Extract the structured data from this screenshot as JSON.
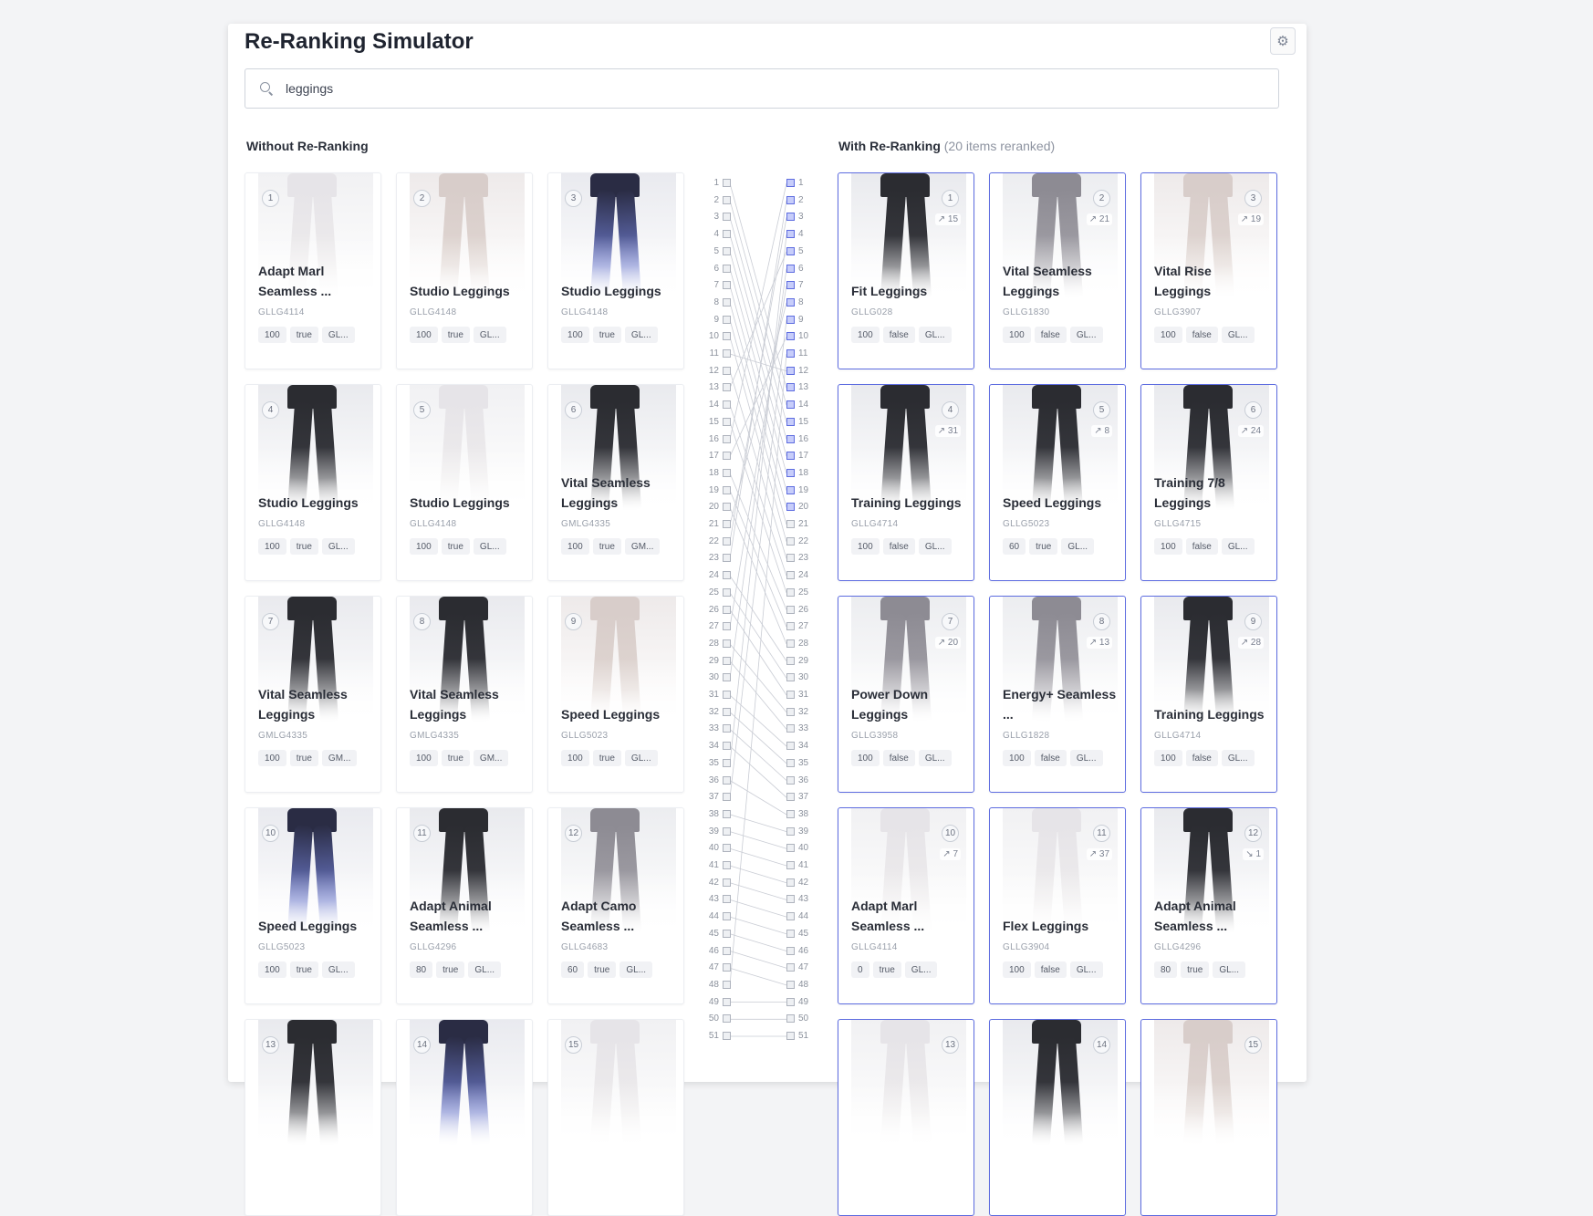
{
  "app": {
    "title": "Re-Ranking Simulator"
  },
  "search": {
    "value": "leggings",
    "placeholder": ""
  },
  "sections": {
    "left_title": "Without Re-Ranking",
    "right_title": "With Re-Ranking",
    "right_subtitle": "(20 items reranked)"
  },
  "colors": {
    "accent": "#5d6ce0",
    "dark": "#26282e",
    "light": "#e9e8ea"
  },
  "left_cards": [
    {
      "rank": "1",
      "name": "Adapt Marl Seamless ...",
      "sku": "GLLG4114",
      "chips": [
        "100",
        "true",
        "GL..."
      ],
      "tone": "light"
    },
    {
      "rank": "2",
      "name": "Studio Leggings",
      "sku": "GLLG4148",
      "chips": [
        "100",
        "true",
        "GL..."
      ],
      "tone": "beige"
    },
    {
      "rank": "3",
      "name": "Studio Leggings",
      "sku": "GLLG4148",
      "chips": [
        "100",
        "true",
        "GL..."
      ],
      "tone": "blue"
    },
    {
      "rank": "4",
      "name": "Studio Leggings",
      "sku": "GLLG4148",
      "chips": [
        "100",
        "true",
        "GL..."
      ],
      "tone": "dark"
    },
    {
      "rank": "5",
      "name": "Studio Leggings",
      "sku": "GLLG4148",
      "chips": [
        "100",
        "true",
        "GL..."
      ],
      "tone": "light"
    },
    {
      "rank": "6",
      "name": "Vital Seamless Leggings",
      "sku": "GMLG4335",
      "chips": [
        "100",
        "true",
        "GM..."
      ],
      "tone": "dark"
    },
    {
      "rank": "7",
      "name": "Vital Seamless Leggings",
      "sku": "GMLG4335",
      "chips": [
        "100",
        "true",
        "GM..."
      ],
      "tone": "dark"
    },
    {
      "rank": "8",
      "name": "Vital Seamless Leggings",
      "sku": "GMLG4335",
      "chips": [
        "100",
        "true",
        "GM..."
      ],
      "tone": "dark"
    },
    {
      "rank": "9",
      "name": "Speed Leggings",
      "sku": "GLLG5023",
      "chips": [
        "100",
        "true",
        "GL..."
      ],
      "tone": "beige"
    },
    {
      "rank": "10",
      "name": "Speed Leggings",
      "sku": "GLLG5023",
      "chips": [
        "100",
        "true",
        "GL..."
      ],
      "tone": "blue"
    },
    {
      "rank": "11",
      "name": "Adapt Animal Seamless ...",
      "sku": "GLLG4296",
      "chips": [
        "80",
        "true",
        "GL..."
      ],
      "tone": "dark"
    },
    {
      "rank": "12",
      "name": "Adapt Camo Seamless ...",
      "sku": "GLLG4683",
      "chips": [
        "60",
        "true",
        "GL..."
      ],
      "tone": "grey"
    },
    {
      "rank": "13",
      "name": "",
      "sku": "",
      "chips": [],
      "tone": "dark"
    },
    {
      "rank": "14",
      "name": "",
      "sku": "",
      "chips": [],
      "tone": "blue"
    },
    {
      "rank": "15",
      "name": "",
      "sku": "",
      "chips": [],
      "tone": "light"
    }
  ],
  "right_cards": [
    {
      "rank": "1",
      "delta": "↗ 15",
      "name": "Fit Leggings",
      "sku": "GLLG028",
      "chips": [
        "100",
        "false",
        "GL..."
      ],
      "tone": "dark"
    },
    {
      "rank": "2",
      "delta": "↗ 21",
      "name": "Vital Seamless Leggings",
      "sku": "GLLG1830",
      "chips": [
        "100",
        "false",
        "GL..."
      ],
      "tone": "grey"
    },
    {
      "rank": "3",
      "delta": "↗ 19",
      "name": "Vital Rise Leggings",
      "sku": "GLLG3907",
      "chips": [
        "100",
        "false",
        "GL..."
      ],
      "tone": "beige"
    },
    {
      "rank": "4",
      "delta": "↗ 31",
      "name": "Training Leggings",
      "sku": "GLLG4714",
      "chips": [
        "100",
        "false",
        "GL..."
      ],
      "tone": "dark"
    },
    {
      "rank": "5",
      "delta": "↗ 8",
      "name": "Speed Leggings",
      "sku": "GLLG5023",
      "chips": [
        "60",
        "true",
        "GL..."
      ],
      "tone": "dark"
    },
    {
      "rank": "6",
      "delta": "↗ 24",
      "name": "Training 7/8 Leggings",
      "sku": "GLLG4715",
      "chips": [
        "100",
        "false",
        "GL..."
      ],
      "tone": "dark"
    },
    {
      "rank": "7",
      "delta": "↗ 20",
      "name": "Power Down Leggings",
      "sku": "GLLG3958",
      "chips": [
        "100",
        "false",
        "GL..."
      ],
      "tone": "grey"
    },
    {
      "rank": "8",
      "delta": "↗ 13",
      "name": "Energy+ Seamless ...",
      "sku": "GLLG1828",
      "chips": [
        "100",
        "false",
        "GL..."
      ],
      "tone": "grey"
    },
    {
      "rank": "9",
      "delta": "↗ 28",
      "name": "Training Leggings",
      "sku": "GLLG4714",
      "chips": [
        "100",
        "false",
        "GL..."
      ],
      "tone": "dark"
    },
    {
      "rank": "10",
      "delta": "↗ 7",
      "name": "Adapt Marl Seamless ...",
      "sku": "GLLG4114",
      "chips": [
        "0",
        "true",
        "GL..."
      ],
      "tone": "light"
    },
    {
      "rank": "11",
      "delta": "↗ 37",
      "name": "Flex Leggings",
      "sku": "GLLG3904",
      "chips": [
        "100",
        "false",
        "GL..."
      ],
      "tone": "light"
    },
    {
      "rank": "12",
      "delta": "↘ 1",
      "name": "Adapt Animal Seamless ...",
      "sku": "GLLG4296",
      "chips": [
        "80",
        "true",
        "GL..."
      ],
      "tone": "dark"
    },
    {
      "rank": "13",
      "delta": "",
      "name": "",
      "sku": "",
      "chips": [],
      "tone": "light"
    },
    {
      "rank": "14",
      "delta": "",
      "name": "",
      "sku": "",
      "chips": [],
      "tone": "dark"
    },
    {
      "rank": "15",
      "delta": "",
      "name": "",
      "sku": "",
      "chips": [],
      "tone": "beige"
    }
  ],
  "ladder": {
    "labels": [
      "1",
      "2",
      "3",
      "4",
      "5",
      "6",
      "7",
      "8",
      "9",
      "10",
      "11",
      "12",
      "13",
      "14",
      "15",
      "16",
      "17",
      "18",
      "19",
      "20",
      "21",
      "22",
      "23",
      "24",
      "25",
      "26",
      "27",
      "28",
      "29",
      "30",
      "31",
      "32",
      "33",
      "34",
      "35",
      "36",
      "37",
      "38",
      "39",
      "40",
      "41",
      "42",
      "43",
      "44",
      "45",
      "46",
      "47",
      "48",
      "49",
      "50",
      "51"
    ],
    "reranked_count": 20,
    "moves": [
      [
        16,
        1
      ],
      [
        23,
        2
      ],
      [
        22,
        3
      ],
      [
        35,
        4
      ],
      [
        13,
        5
      ],
      [
        30,
        6
      ],
      [
        27,
        7
      ],
      [
        21,
        8
      ],
      [
        37,
        9
      ],
      [
        17,
        10
      ],
      [
        48,
        11
      ],
      [
        11,
        12
      ],
      [
        1,
        13
      ],
      [
        2,
        14
      ],
      [
        3,
        15
      ],
      [
        4,
        16
      ],
      [
        5,
        17
      ],
      [
        6,
        18
      ],
      [
        7,
        19
      ],
      [
        8,
        20
      ],
      [
        9,
        21
      ],
      [
        10,
        22
      ],
      [
        12,
        23
      ],
      [
        14,
        24
      ],
      [
        15,
        25
      ],
      [
        18,
        26
      ],
      [
        19,
        27
      ],
      [
        20,
        28
      ],
      [
        24,
        29
      ],
      [
        25,
        30
      ],
      [
        26,
        31
      ],
      [
        28,
        32
      ],
      [
        29,
        33
      ],
      [
        31,
        34
      ],
      [
        32,
        35
      ],
      [
        33,
        36
      ],
      [
        34,
        37
      ],
      [
        36,
        38
      ],
      [
        38,
        39
      ],
      [
        39,
        40
      ],
      [
        40,
        41
      ],
      [
        41,
        42
      ],
      [
        42,
        43
      ],
      [
        43,
        44
      ],
      [
        44,
        45
      ],
      [
        45,
        46
      ],
      [
        46,
        47
      ],
      [
        47,
        48
      ],
      [
        49,
        49
      ],
      [
        50,
        50
      ],
      [
        51,
        51
      ]
    ]
  }
}
